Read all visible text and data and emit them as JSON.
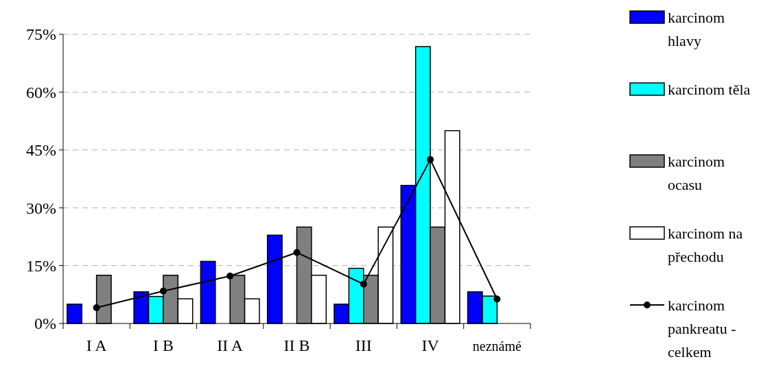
{
  "chart_data": {
    "type": "bar",
    "categories": [
      "I A",
      "I B",
      "II A",
      "II B",
      "III",
      "IV",
      "neznámé"
    ],
    "series": [
      {
        "name": "karcinom hlavy",
        "color": "#0000ff",
        "values": [
          5.0,
          8.2,
          16.1,
          22.9,
          5.0,
          35.8,
          8.2
        ]
      },
      {
        "name": "karcinom těla",
        "color": "#00ffff",
        "values": [
          null,
          7.0,
          null,
          null,
          14.3,
          71.8,
          7.1
        ]
      },
      {
        "name": "karcinom ocasu",
        "color": "#808080",
        "values": [
          12.5,
          12.5,
          12.5,
          25,
          12.5,
          25,
          null
        ]
      },
      {
        "name": "karcinom na přechodu",
        "color": "#ffffff",
        "values": [
          null,
          6.4,
          6.4,
          12.5,
          25,
          50,
          null
        ]
      },
      {
        "name": "karcinom pankreatu - celkem",
        "type": "line",
        "color": "#000000",
        "values": [
          4.1,
          8.4,
          12.3,
          18.4,
          10.2,
          42.5,
          6.3
        ]
      }
    ],
    "ylim": [
      0,
      75
    ],
    "yticks": [
      {
        "value": 0,
        "label": "0%"
      },
      {
        "value": 15,
        "label": "15%"
      },
      {
        "value": 30,
        "label": "30%"
      },
      {
        "value": 45,
        "label": "45%"
      },
      {
        "value": 60,
        "label": "60%"
      },
      {
        "value": 75,
        "label": "75%"
      }
    ],
    "grid": "y",
    "legend": "right",
    "marker": "circle"
  }
}
